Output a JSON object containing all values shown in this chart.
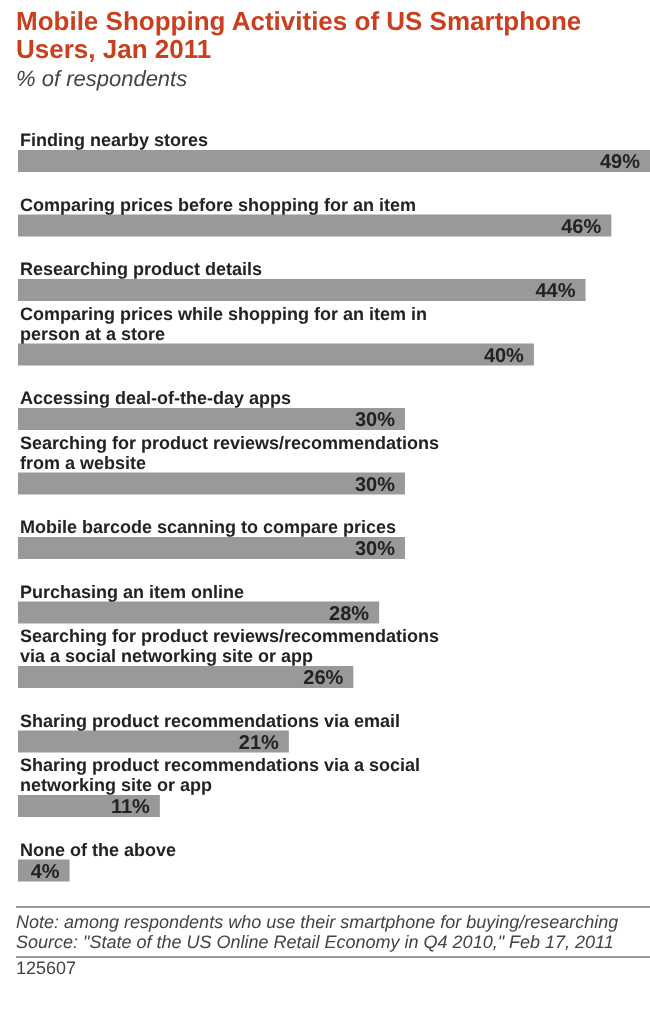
{
  "chart_data": {
    "type": "bar",
    "orientation": "horizontal",
    "title": "Mobile Shopping Activities of US Smartphone Users, Jan 2011",
    "subtitle": "% of respondents",
    "categories": [
      "Finding nearby stores",
      "Comparing prices before shopping for an item",
      "Researching product details",
      "Comparing prices while shopping for an item in person at a store",
      "Accessing deal-of-the-day apps",
      "Searching for product reviews/recommendations from a website",
      "Mobile barcode scanning to compare prices",
      "Purchasing an item online",
      "Searching for product reviews/recommendations via a social networking site or app",
      "Sharing product recommendations via email",
      "Sharing product recommendations via a social networking site or app",
      "None of the above"
    ],
    "values": [
      49,
      46,
      44,
      40,
      30,
      30,
      30,
      28,
      26,
      21,
      11,
      4
    ],
    "value_labels": [
      "49%",
      "46%",
      "44%",
      "40%",
      "30%",
      "30%",
      "30%",
      "28%",
      "26%",
      "21%",
      "11%",
      "4%"
    ],
    "color": "#999999",
    "annotations": [
      "Note: among respondents who use their smartphone for buying/researching",
      "Source: \"State of the US Online Retail Economy in Q4 2010,\" Feb 17, 2011",
      "125607"
    ]
  }
}
